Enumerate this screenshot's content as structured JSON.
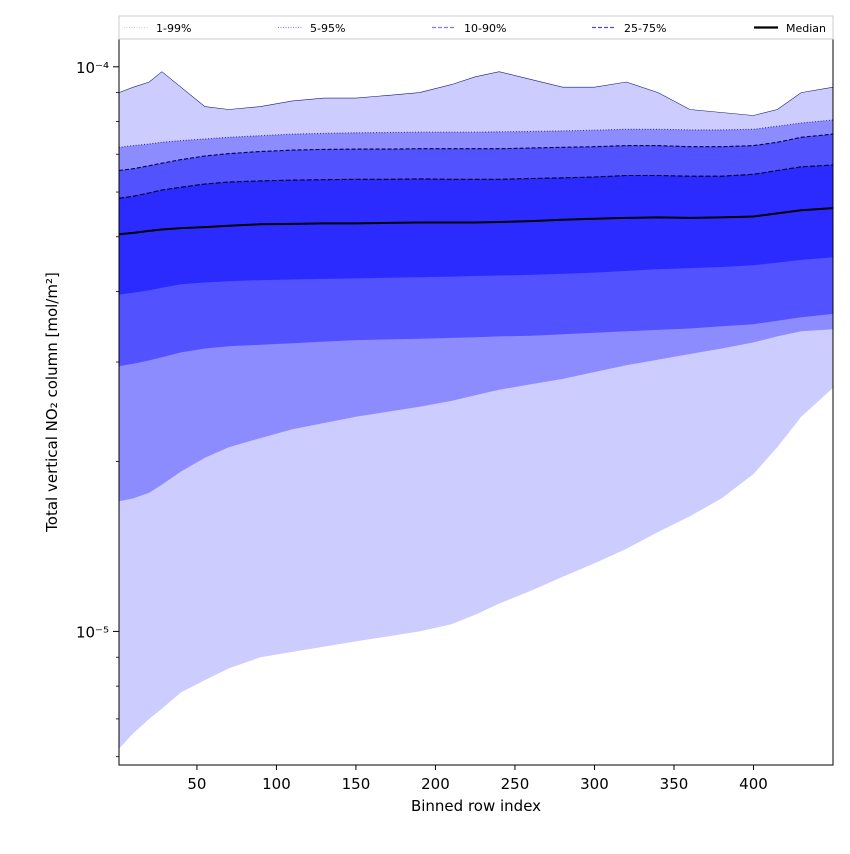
{
  "chart_data": {
    "type": "area",
    "title": "",
    "xlabel": "Binned row index",
    "ylabel": "Total vertical NO₂ column [mol/m²]",
    "xlim": [
      1,
      450
    ],
    "ylim": [
      5.8e-06,
      0.000112
    ],
    "yscale": "log",
    "grid": false,
    "legend_position": "top",
    "x_ticks": [
      50,
      100,
      150,
      200,
      250,
      300,
      350,
      400
    ],
    "y_ticks": [
      {
        "value": 1e-05,
        "label": "10⁻⁵"
      },
      {
        "value": 0.0001,
        "label": "10⁻⁴"
      }
    ],
    "legend": [
      {
        "label": "1-99%",
        "color": "#ccccff",
        "style": "dotted"
      },
      {
        "label": "5-95%",
        "color": "#8c8cff",
        "style": "dotted"
      },
      {
        "label": "10-90%",
        "color": "#7a7aff",
        "style": "dashed"
      },
      {
        "label": "25-75%",
        "color": "#4646ff",
        "style": "dashed"
      },
      {
        "label": "Median",
        "color": "#000000",
        "style": "solid"
      }
    ],
    "x": [
      1,
      10,
      20,
      28,
      40,
      55,
      70,
      90,
      110,
      130,
      150,
      170,
      190,
      210,
      225,
      240,
      260,
      280,
      300,
      320,
      340,
      360,
      380,
      400,
      415,
      430,
      450
    ],
    "bands": [
      {
        "name": "1-99%",
        "fill": "#ccccff",
        "lower": [
          6.2e-06,
          6.6e-06,
          7e-06,
          7.3e-06,
          7.8e-06,
          8.2e-06,
          8.6e-06,
          9e-06,
          9.2e-06,
          9.4e-06,
          9.6e-06,
          9.8e-06,
          1e-05,
          1.03e-05,
          1.07e-05,
          1.12e-05,
          1.18e-05,
          1.25e-05,
          1.32e-05,
          1.4e-05,
          1.5e-05,
          1.6e-05,
          1.72e-05,
          1.9e-05,
          2.12e-05,
          2.4e-05,
          2.7e-05
        ],
        "upper": [
          9e-05,
          9.2e-05,
          9.4e-05,
          9.8e-05,
          9.2e-05,
          8.5e-05,
          8.4e-05,
          8.5e-05,
          8.7e-05,
          8.8e-05,
          8.8e-05,
          8.9e-05,
          9e-05,
          9.3e-05,
          9.6e-05,
          9.8e-05,
          9.5e-05,
          9.2e-05,
          9.2e-05,
          9.4e-05,
          9e-05,
          8.4e-05,
          8.3e-05,
          8.2e-05,
          8.4e-05,
          9e-05,
          9.2e-05
        ]
      },
      {
        "name": "5-95%",
        "fill": "#8c8cff",
        "lower": [
          1.7e-05,
          1.72e-05,
          1.76e-05,
          1.82e-05,
          1.92e-05,
          2.03e-05,
          2.12e-05,
          2.2e-05,
          2.28e-05,
          2.34e-05,
          2.4e-05,
          2.45e-05,
          2.5e-05,
          2.56e-05,
          2.62e-05,
          2.68e-05,
          2.74e-05,
          2.8e-05,
          2.88e-05,
          2.96e-05,
          3.03e-05,
          3.1e-05,
          3.17e-05,
          3.25e-05,
          3.33e-05,
          3.4e-05,
          3.43e-05
        ],
        "upper": [
          7.2e-05,
          7.25e-05,
          7.3e-05,
          7.35e-05,
          7.4e-05,
          7.45e-05,
          7.5e-05,
          7.55e-05,
          7.6e-05,
          7.62e-05,
          7.64e-05,
          7.65e-05,
          7.66e-05,
          7.66e-05,
          7.66e-05,
          7.67e-05,
          7.68e-05,
          7.7e-05,
          7.72e-05,
          7.75e-05,
          7.75e-05,
          7.73e-05,
          7.73e-05,
          7.75e-05,
          7.85e-05,
          7.95e-05,
          8.05e-05
        ]
      },
      {
        "name": "10-90%",
        "fill": "#5252ff",
        "lower": [
          2.95e-05,
          2.98e-05,
          3.02e-05,
          3.06e-05,
          3.12e-05,
          3.17e-05,
          3.2e-05,
          3.22e-05,
          3.24e-05,
          3.26e-05,
          3.28e-05,
          3.29e-05,
          3.3e-05,
          3.31e-05,
          3.32e-05,
          3.33e-05,
          3.34e-05,
          3.36e-05,
          3.38e-05,
          3.4e-05,
          3.42e-05,
          3.44e-05,
          3.47e-05,
          3.5e-05,
          3.55e-05,
          3.6e-05,
          3.65e-05
        ],
        "upper": [
          6.55e-05,
          6.6e-05,
          6.68e-05,
          6.75e-05,
          6.85e-05,
          6.95e-05,
          7.02e-05,
          7.08e-05,
          7.12e-05,
          7.14e-05,
          7.15e-05,
          7.15e-05,
          7.16e-05,
          7.16e-05,
          7.16e-05,
          7.16e-05,
          7.18e-05,
          7.2e-05,
          7.22e-05,
          7.25e-05,
          7.25e-05,
          7.22e-05,
          7.22e-05,
          7.25e-05,
          7.35e-05,
          7.5e-05,
          7.6e-05
        ]
      },
      {
        "name": "25-75%",
        "fill": "#2b2bff",
        "lower": [
          3.95e-05,
          3.98e-05,
          4.02e-05,
          4.06e-05,
          4.12e-05,
          4.15e-05,
          4.17e-05,
          4.19e-05,
          4.2e-05,
          4.21e-05,
          4.22e-05,
          4.23e-05,
          4.24e-05,
          4.25e-05,
          4.26e-05,
          4.27e-05,
          4.28e-05,
          4.3e-05,
          4.32e-05,
          4.35e-05,
          4.38e-05,
          4.4e-05,
          4.42e-05,
          4.45e-05,
          4.5e-05,
          4.55e-05,
          4.6e-05
        ],
        "upper": [
          5.85e-05,
          5.9e-05,
          5.98e-05,
          6.05e-05,
          6.12e-05,
          6.2e-05,
          6.25e-05,
          6.28e-05,
          6.3e-05,
          6.31e-05,
          6.32e-05,
          6.32e-05,
          6.33e-05,
          6.32e-05,
          6.32e-05,
          6.32e-05,
          6.34e-05,
          6.36e-05,
          6.38e-05,
          6.42e-05,
          6.42e-05,
          6.4e-05,
          6.4e-05,
          6.45e-05,
          6.55e-05,
          6.65e-05,
          6.7e-05
        ]
      }
    ],
    "median": {
      "name": "Median",
      "color": "#000000",
      "values": [
        5.05e-05,
        5.08e-05,
        5.12e-05,
        5.15e-05,
        5.18e-05,
        5.2e-05,
        5.23e-05,
        5.26e-05,
        5.27e-05,
        5.28e-05,
        5.28e-05,
        5.29e-05,
        5.3e-05,
        5.3e-05,
        5.3e-05,
        5.31e-05,
        5.33e-05,
        5.36e-05,
        5.38e-05,
        5.4e-05,
        5.41e-05,
        5.4e-05,
        5.41e-05,
        5.43e-05,
        5.5e-05,
        5.57e-05,
        5.62e-05
      ]
    }
  }
}
